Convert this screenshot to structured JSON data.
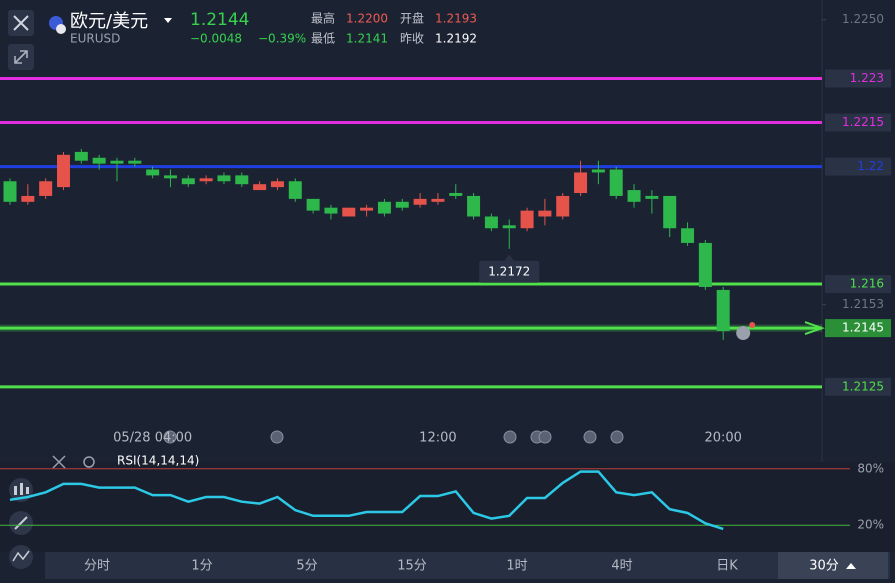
{
  "header": {
    "title": "欧元/美元",
    "symbol": "EURUSD",
    "price": "1.2144",
    "change": "−0.0048",
    "change_pct": "−0.39%",
    "stats": [
      {
        "label": "最高",
        "value": "1.2200"
      },
      {
        "label": "开盘",
        "value": "1.2193"
      },
      {
        "label": "最低",
        "value": "1.2141"
      },
      {
        "label": "昨收",
        "value": "1.2192"
      }
    ]
  },
  "chart_data": [
    {
      "type": "candlestick",
      "categories": [
        null,
        null,
        null,
        null,
        null,
        null,
        null,
        null,
        "05/28 04:00",
        null,
        null,
        null,
        null,
        null,
        null,
        null,
        null,
        null,
        null,
        null,
        null,
        null,
        null,
        null,
        "12:00",
        null,
        null,
        null,
        null,
        null,
        null,
        null,
        null,
        null,
        null,
        null,
        null,
        null,
        null,
        null,
        "20:00"
      ],
      "open": [
        1.2195,
        1.2188,
        1.219,
        1.2193,
        1.2205,
        1.2203,
        1.2202,
        1.2202,
        1.2199,
        1.2197,
        1.2196,
        1.2195,
        1.2197,
        1.2197,
        1.2192,
        1.2193,
        1.2195,
        1.2189,
        1.2186,
        1.2183,
        1.2185,
        1.2188,
        1.2188,
        1.2187,
        1.2188,
        1.2191,
        1.219,
        1.2183,
        1.218,
        1.2179,
        1.2183,
        1.2183,
        1.2191,
        1.2199,
        1.2199,
        1.2192,
        1.219,
        1.219,
        1.2179,
        1.2174,
        1.2158
      ],
      "high": [
        1.2196,
        1.2194,
        1.2196,
        1.2205,
        1.2206,
        1.2204,
        1.2203,
        1.2203,
        1.22,
        1.2199,
        1.2197,
        1.2197,
        1.2198,
        1.2198,
        1.2195,
        1.2196,
        1.2196,
        1.2189,
        1.2187,
        1.2186,
        1.2187,
        1.2189,
        1.2189,
        1.2191,
        1.2191,
        1.2194,
        1.2191,
        1.2184,
        1.2182,
        1.2186,
        1.2189,
        1.2191,
        1.2202,
        1.2202,
        1.22,
        1.2194,
        1.2192,
        1.219,
        1.2181,
        1.2175,
        1.2159
      ],
      "low": [
        1.2187,
        1.2187,
        1.2189,
        1.2192,
        1.2201,
        1.2199,
        1.2195,
        1.22,
        1.2196,
        1.2193,
        1.2193,
        1.2194,
        1.2194,
        1.2193,
        1.2192,
        1.2192,
        1.2188,
        1.2184,
        1.2182,
        1.2183,
        1.2183,
        1.2183,
        1.2185,
        1.2186,
        1.2187,
        1.2189,
        1.2182,
        1.2178,
        1.2172,
        1.2178,
        1.218,
        1.2182,
        1.219,
        1.2194,
        1.2189,
        1.2186,
        1.2184,
        1.2176,
        1.2173,
        1.2158,
        1.2141
      ],
      "close": [
        1.2188,
        1.219,
        1.2195,
        1.2204,
        1.2202,
        1.2201,
        1.2201,
        1.2201,
        1.2197,
        1.2196,
        1.2194,
        1.2196,
        1.2195,
        1.2194,
        1.2194,
        1.2195,
        1.2189,
        1.2185,
        1.2184,
        1.2186,
        1.2186,
        1.2184,
        1.2186,
        1.2189,
        1.2189,
        1.219,
        1.2183,
        1.2179,
        1.2179,
        1.2185,
        1.2185,
        1.219,
        1.2198,
        1.2198,
        1.219,
        1.2188,
        1.2189,
        1.2179,
        1.2174,
        1.2159,
        1.2144
      ],
      "up_color": "#e5534b",
      "down_color": "#2eb84c",
      "ylim": [
        1.2112,
        1.2254
      ],
      "yticks": [
        {
          "value": 1.225,
          "label": "1.2250"
        },
        1.2153
      ],
      "price_lines": [
        {
          "value": 1.223,
          "color": "#e22ee0"
        },
        {
          "value": 1.2215,
          "color": "#e22ee0"
        },
        {
          "value": 1.22,
          "color": "#1f3fe0"
        },
        {
          "value": 1.216,
          "color": "#4fe04a"
        },
        {
          "value": 1.2145,
          "color": "#4fe04a",
          "current": true
        },
        {
          "value": 1.2125,
          "color": "#4fe04a"
        }
      ],
      "annotations": [
        "1.2172"
      ]
    },
    {
      "type": "line",
      "title": "RSI(14,14,14)",
      "color": "#2bc9e6",
      "values": [
        47,
        50,
        55,
        64,
        64,
        60,
        60,
        60,
        52,
        52,
        45,
        50,
        50,
        45,
        43,
        50,
        36,
        30,
        30,
        30,
        34,
        34,
        34,
        51,
        51,
        56,
        33,
        27,
        30,
        49,
        49,
        65,
        77,
        77,
        55,
        52,
        55,
        37,
        33,
        22,
        16
      ],
      "ylim": [
        0,
        100
      ],
      "yticks": [
        {
          "value": 80,
          "label": "80%",
          "color": "#b8403c"
        },
        {
          "value": 20,
          "label": "20%",
          "color": "#3fb83a"
        }
      ]
    }
  ],
  "tabs": [
    {
      "label": "分时"
    },
    {
      "label": "1分"
    },
    {
      "label": "5分"
    },
    {
      "label": "15分"
    },
    {
      "label": "1时"
    },
    {
      "label": "4时"
    },
    {
      "label": "日K"
    },
    {
      "label": "30分",
      "selected": true
    }
  ]
}
